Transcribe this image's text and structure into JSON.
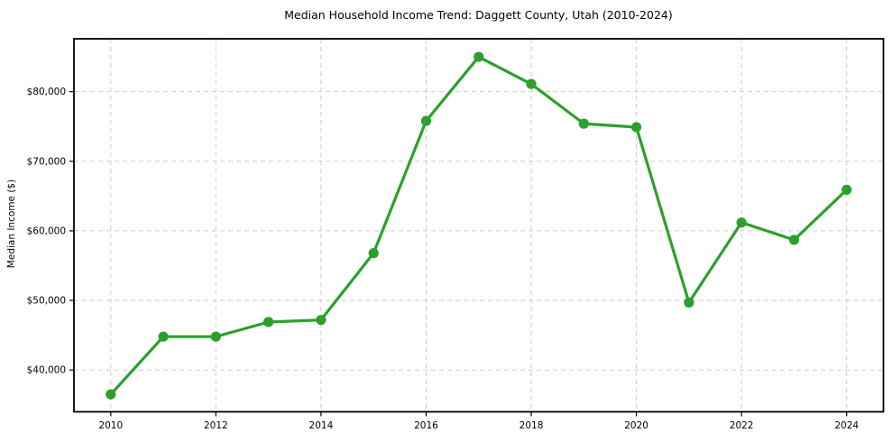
{
  "chart_data": {
    "type": "line",
    "title": "Median Household Income Trend: Daggett County, Utah (2010-2024)",
    "xlabel": "",
    "ylabel": "Median Income ($)",
    "x": [
      2010,
      2011,
      2012,
      2013,
      2014,
      2015,
      2016,
      2017,
      2018,
      2019,
      2020,
      2021,
      2022,
      2023,
      2024
    ],
    "values": [
      36500,
      44800,
      44800,
      46900,
      47200,
      56800,
      75800,
      85000,
      81100,
      75400,
      74900,
      49700,
      61200,
      58700,
      65900
    ],
    "x_ticks": [
      2010,
      2012,
      2014,
      2016,
      2018,
      2020,
      2022,
      2024
    ],
    "x_tick_labels": [
      "2010",
      "2012",
      "2014",
      "2016",
      "2018",
      "2020",
      "2022",
      "2024"
    ],
    "y_ticks": [
      40000,
      50000,
      60000,
      70000,
      80000
    ],
    "y_tick_labels": [
      "$40,000",
      "$50,000",
      "$60,000",
      "$70,000",
      "$80,000"
    ],
    "xlim": [
      2009.3,
      2024.7
    ],
    "ylim": [
      34000,
      87600
    ],
    "grid": true,
    "grid_style": "dashed",
    "legend": "none",
    "line_color": "#2ca02c",
    "marker": "o",
    "marker_color": "#2ca02c",
    "grid_color": "#cccccc",
    "axis_color": "#000000",
    "text_color": "#000000",
    "background_color": "#ffffff"
  }
}
